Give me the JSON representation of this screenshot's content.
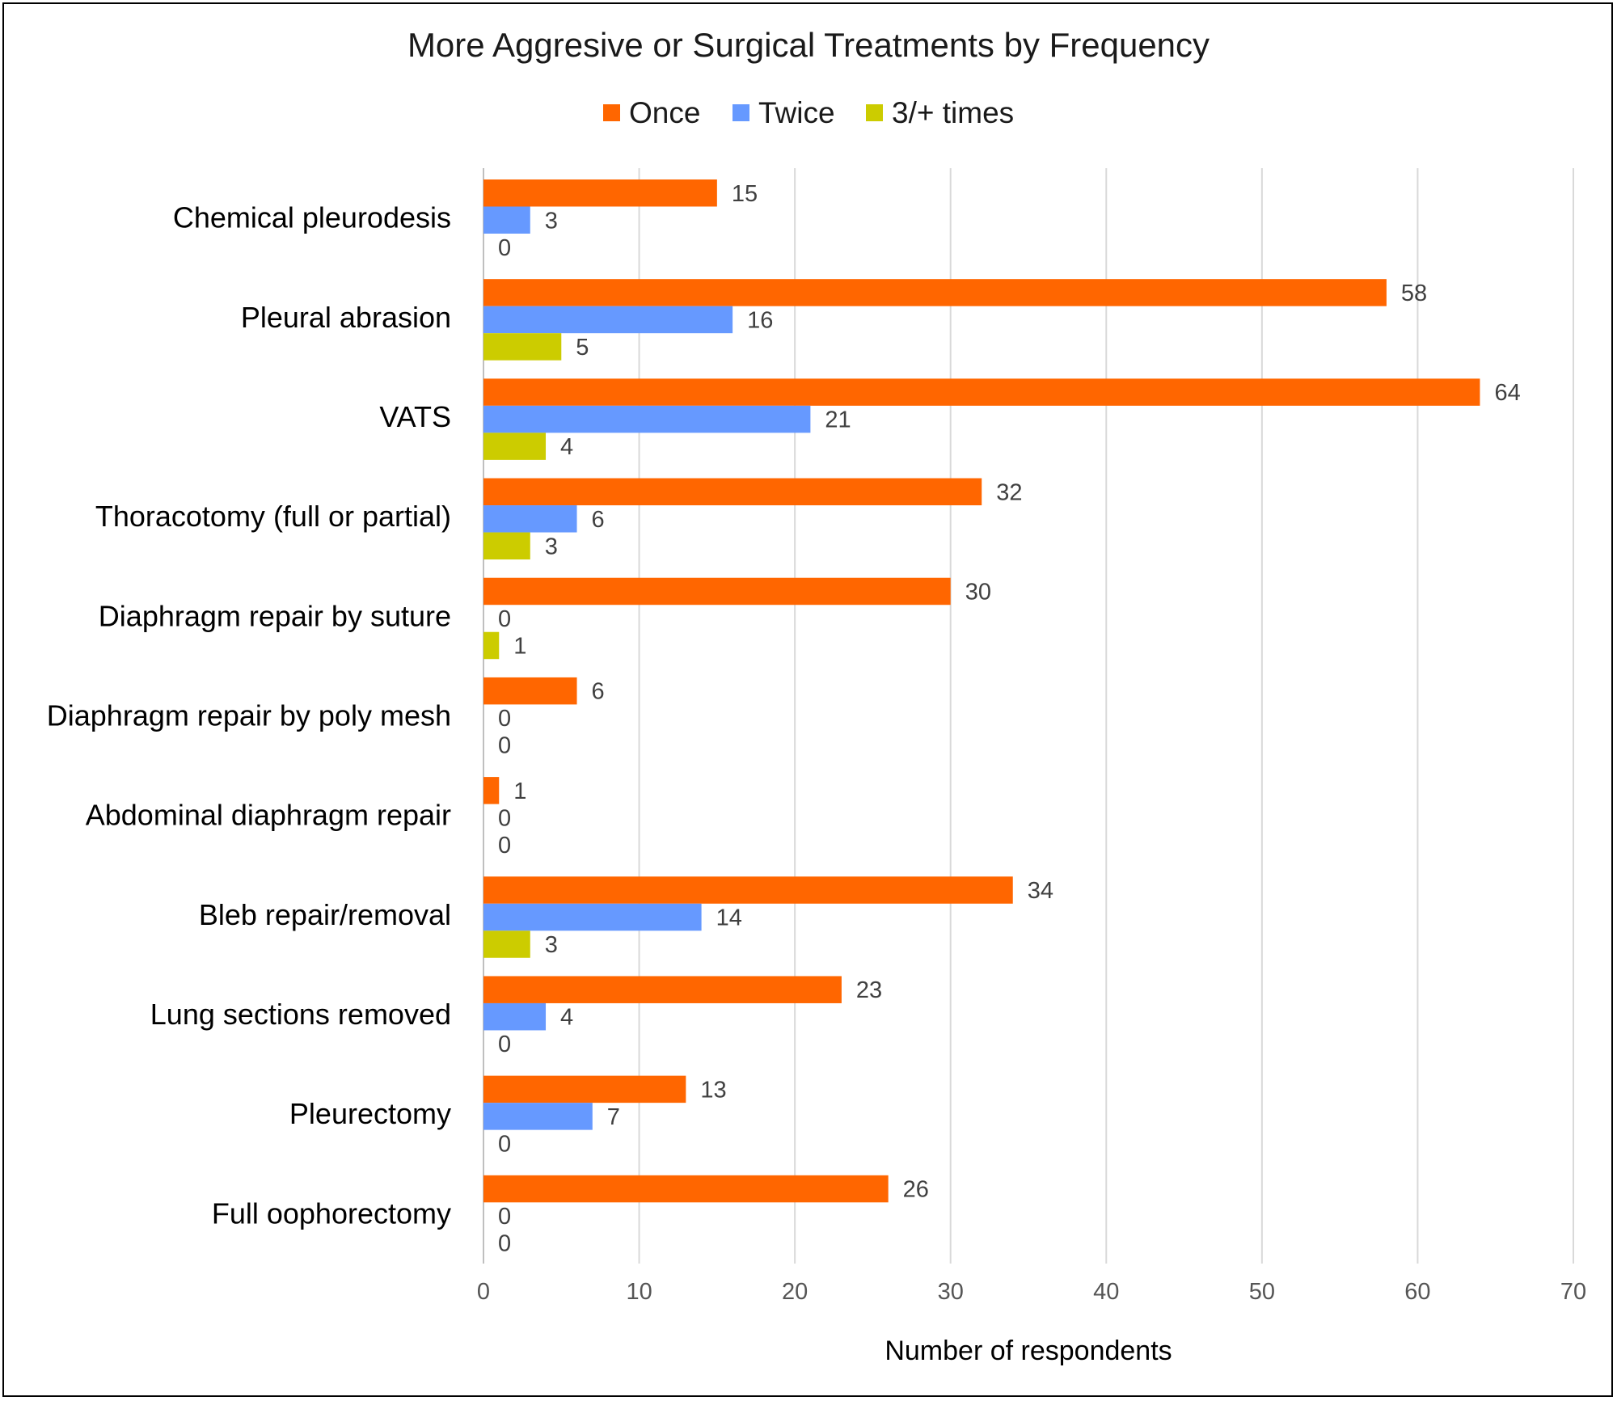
{
  "chart_data": {
    "type": "bar",
    "orientation": "horizontal",
    "title": "More Aggresive or Surgical Treatments by Frequency",
    "xlabel": "Number of respondents",
    "ylabel": "",
    "xlim": [
      0,
      70
    ],
    "xticks": [
      0,
      10,
      20,
      30,
      40,
      50,
      60,
      70
    ],
    "grid": true,
    "legend_position": "top",
    "categories": [
      "Chemical pleurodesis",
      "Pleural abrasion",
      "VATS",
      "Thoracotomy (full or partial)",
      "Diaphragm repair by suture",
      "Diaphragm repair by poly mesh",
      "Abdominal diaphragm repair",
      "Bleb repair/removal",
      "Lung sections removed",
      "Pleurectomy",
      "Full oophorectomy"
    ],
    "series": [
      {
        "name": "Once",
        "color": "#ff6600",
        "values": [
          15,
          58,
          64,
          32,
          30,
          6,
          1,
          34,
          23,
          13,
          26
        ]
      },
      {
        "name": "Twice",
        "color": "#6699ff",
        "values": [
          3,
          16,
          21,
          6,
          0,
          0,
          0,
          14,
          4,
          7,
          0
        ]
      },
      {
        "name": "3/+ times",
        "color": "#cccc00",
        "values": [
          0,
          5,
          4,
          3,
          1,
          0,
          0,
          3,
          0,
          0,
          0
        ]
      }
    ]
  }
}
